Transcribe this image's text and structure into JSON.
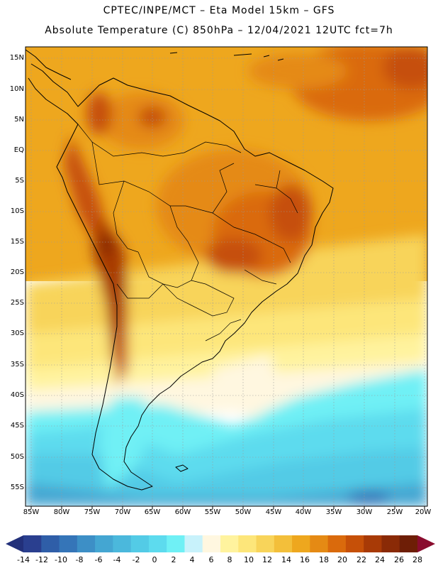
{
  "header": {
    "line1": "CPTEC/INPE/MCT –  Eta Model 15km – GFS",
    "line2": "Absolute Temperature (C) 850hPa – 12/04/2021 12UTC fct=7h"
  },
  "axes": {
    "lat_labels": [
      "15N",
      "10N",
      "5N",
      "EQ",
      "5S",
      "10S",
      "15S",
      "20S",
      "25S",
      "30S",
      "35S",
      "40S",
      "45S",
      "50S",
      "55S"
    ],
    "lon_labels": [
      "85W",
      "80W",
      "75W",
      "70W",
      "65W",
      "60W",
      "55W",
      "50W",
      "45W",
      "40W",
      "35W",
      "30W",
      "25W",
      "20W"
    ]
  },
  "colorbar": {
    "labels": [
      "-14",
      "-12",
      "-10",
      "-8",
      "-6",
      "-4",
      "-2",
      "0",
      "2",
      "4",
      "6",
      "8",
      "10",
      "12",
      "14",
      "16",
      "18",
      "20",
      "22",
      "24",
      "26",
      "28"
    ],
    "colors": [
      "#2a3f8f",
      "#2f5ea8",
      "#3575b8",
      "#3d8fc6",
      "#44a6d2",
      "#4bb8dc",
      "#53cbe6",
      "#5ddbee",
      "#6ff0f5",
      "#c8f2fb",
      "#fff7e0",
      "#fff39e",
      "#fde67a",
      "#f8d45a",
      "#f3bf3a",
      "#eea71e",
      "#e58a14",
      "#da6a0c",
      "#c65008",
      "#a83a06",
      "#8a2a06",
      "#6e1e06"
    ],
    "below_color": "#22307a",
    "above_color": "#8a0c2e"
  }
}
